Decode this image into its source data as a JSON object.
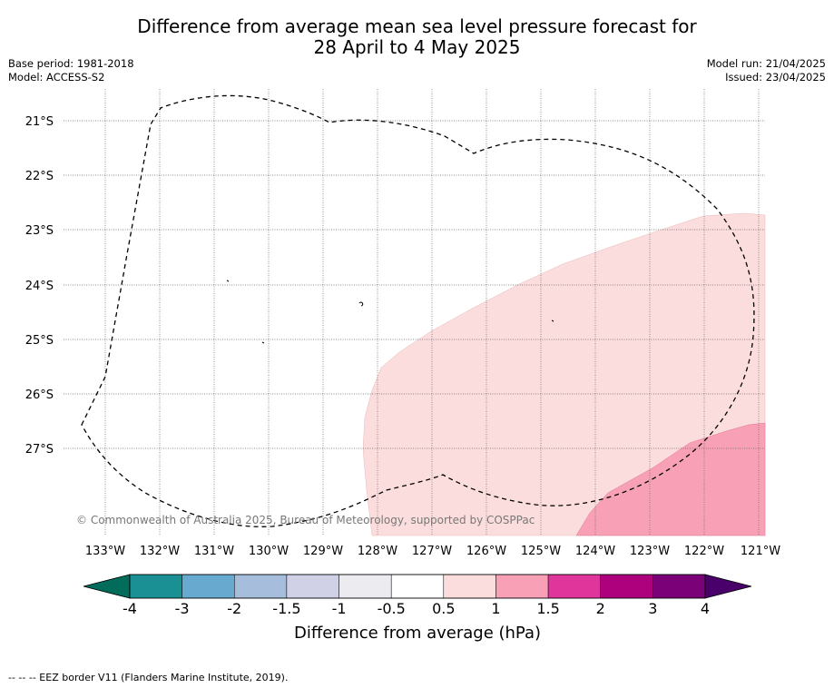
{
  "header": {
    "title_line1": "Difference from average mean sea level pressure forecast for",
    "title_line2": "28 April to 4 May 2025",
    "base_period": "Base period: 1981-2018",
    "model": "Model: ACCESS-S2",
    "model_run": "Model run: 21/04/2025",
    "issued": "Issued: 23/04/2025"
  },
  "map": {
    "lon_labels": [
      "133°W",
      "132°W",
      "131°W",
      "130°W",
      "129°W",
      "128°W",
      "127°W",
      "126°W",
      "125°W",
      "124°W",
      "123°W",
      "122°W",
      "121°W"
    ],
    "lat_labels": [
      "21°S",
      "22°S",
      "23°S",
      "24°S",
      "25°S",
      "26°S",
      "27°S"
    ],
    "copyright": "© Commonwealth of Australia 2025, Bureau of Meteorology, supported by COSPPac",
    "anomaly_colors": {
      "0.5_to_1": "#fcdddd",
      "1_to_1.5": "#f8a0b5"
    }
  },
  "colorbar": {
    "title": "Difference from average (hPa)",
    "ticks": [
      "-4",
      "-3",
      "-2",
      "-1.5",
      "-1",
      "-0.5",
      "0.5",
      "1",
      "1.5",
      "2",
      "3",
      "4"
    ],
    "colors": [
      "#1a9094",
      "#67a9cf",
      "#a6bddb",
      "#d0d1e6",
      "#ececf0",
      "#ffffff",
      "#fcdddd",
      "#f8a0b5",
      "#e0369b",
      "#ae017e",
      "#7a0177"
    ],
    "extend_low_color": "#016c59",
    "extend_high_color": "#49006a"
  },
  "footnote": "--  --  -- EEZ border V11 (Flanders Marine Institute, 2019)."
}
